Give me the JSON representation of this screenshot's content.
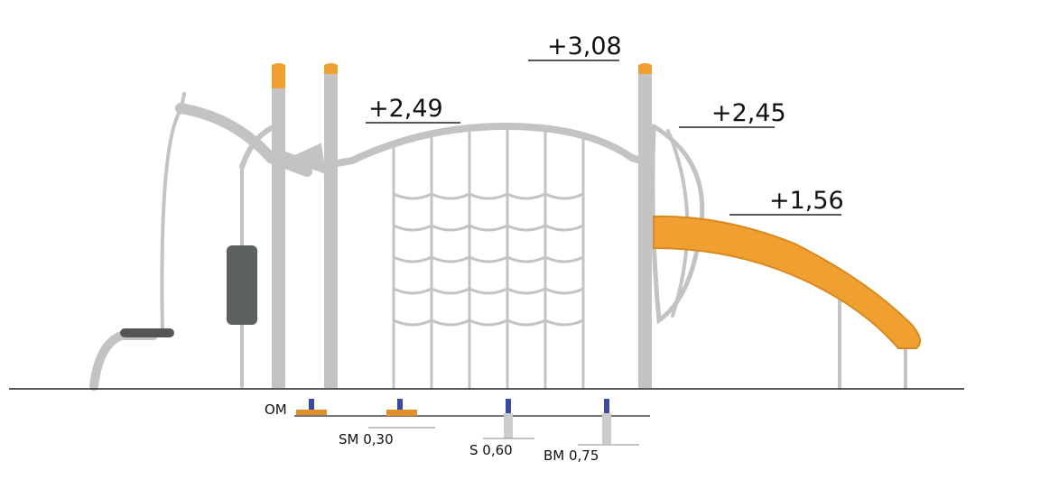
{
  "heights": [
    "+3,08",
    "+2,49",
    "+2,45",
    "+1,56"
  ],
  "anchoring": [
    "OM",
    "SM 0,30",
    "S 0,60",
    "BM 0,75"
  ]
}
